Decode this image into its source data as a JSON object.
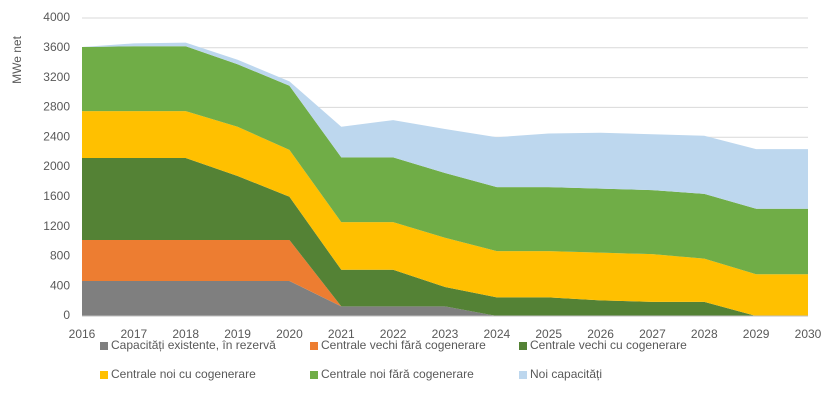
{
  "chart_data": {
    "type": "stacked_area",
    "y_label": "MWe net",
    "categories": [
      "2016",
      "2017",
      "2018",
      "2019",
      "2020",
      "2021",
      "2022",
      "2023",
      "2024",
      "2025",
      "2026",
      "2027",
      "2028",
      "2029",
      "2030"
    ],
    "series": [
      {
        "name": "Capacități existente, în rezervă",
        "color": "#7f7f7f",
        "values": [
          470,
          470,
          470,
          470,
          470,
          130,
          130,
          130,
          0,
          0,
          0,
          0,
          0,
          0,
          0
        ]
      },
      {
        "name": "Centrale vechi fără cogenerare",
        "color": "#ed7d31",
        "values": [
          550,
          550,
          550,
          550,
          550,
          0,
          0,
          0,
          0,
          0,
          0,
          0,
          0,
          0,
          0
        ]
      },
      {
        "name": "Centrale vechi cu cogenerare",
        "color": "#548235",
        "values": [
          1100,
          1100,
          1100,
          860,
          580,
          490,
          490,
          260,
          250,
          250,
          210,
          190,
          190,
          0,
          0
        ]
      },
      {
        "name": "Centrale noi cu cogenerare",
        "color": "#ffc000",
        "values": [
          630,
          630,
          630,
          660,
          630,
          640,
          640,
          660,
          620,
          620,
          640,
          640,
          580,
          560,
          560
        ]
      },
      {
        "name": "Centrale noi fără cogenerare",
        "color": "#70ad47",
        "values": [
          860,
          870,
          870,
          840,
          860,
          870,
          870,
          870,
          860,
          860,
          860,
          860,
          870,
          880,
          880
        ]
      },
      {
        "name": "Noi capacități",
        "color": "#bdd7ee",
        "values": [
          0,
          40,
          50,
          60,
          60,
          410,
          500,
          590,
          670,
          720,
          750,
          750,
          780,
          800,
          800
        ]
      }
    ],
    "ylim": [
      0,
      4000
    ],
    "yticks": [
      0,
      400,
      800,
      1200,
      1600,
      2000,
      2400,
      2800,
      3200,
      3600,
      4000
    ],
    "grid": true,
    "legend": "bottom"
  }
}
